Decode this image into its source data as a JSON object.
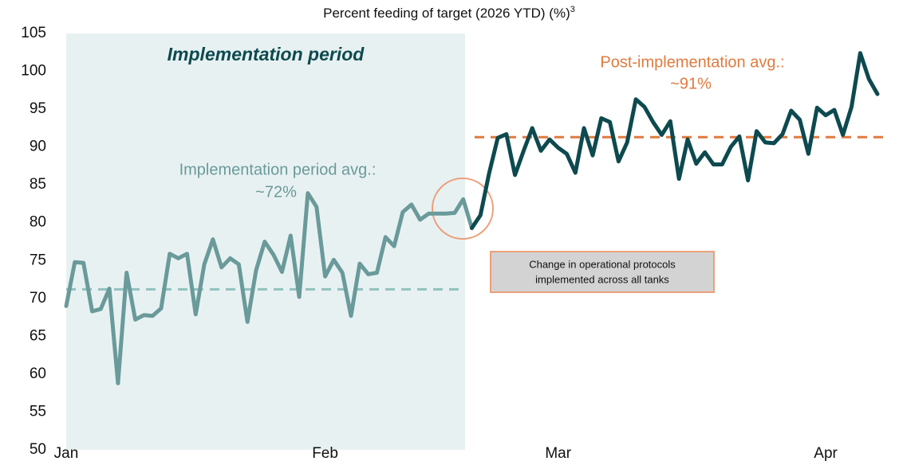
{
  "chart_data": {
    "type": "line",
    "title": "Percent feeding of target (2026 YTD) (%)",
    "title_footnote": "3",
    "ylim": [
      50,
      105
    ],
    "yticks": [
      50,
      55,
      60,
      65,
      70,
      75,
      80,
      85,
      90,
      95,
      100,
      105
    ],
    "xlim": [
      0,
      94
    ],
    "xticks": [
      {
        "value": 0,
        "label": "Jan"
      },
      {
        "value": 30,
        "label": "Feb"
      },
      {
        "value": 57,
        "label": "Mar"
      },
      {
        "value": 88,
        "label": "Apr"
      }
    ],
    "grid": false,
    "series": [
      {
        "name": "Implementation period",
        "color": "#6a9a9a",
        "values": [
          69,
          74.8,
          74.7,
          68.3,
          68.6,
          71.3,
          58.8,
          73.4,
          67.2,
          67.8,
          67.7,
          68.7,
          75.9,
          75.3,
          75.9,
          67.9,
          74.5,
          77.8,
          74.1,
          75.3,
          74.5,
          66.9,
          73.7,
          77.5,
          75.8,
          73.5,
          78.3,
          70.2,
          83.9,
          82.1,
          72.9,
          75.1,
          73.4,
          67.7,
          74.6,
          73.2,
          73.4,
          78.1,
          76.9,
          81.4,
          82.4,
          80.4,
          81.2,
          81.2,
          81.2,
          81.3,
          83.1,
          79.3
        ]
      },
      {
        "name": "Post-implementation",
        "color": "#0d4a4f",
        "values": [
          null,
          null,
          null,
          null,
          null,
          null,
          null,
          null,
          null,
          null,
          null,
          null,
          null,
          null,
          null,
          null,
          null,
          null,
          null,
          null,
          null,
          null,
          null,
          null,
          null,
          null,
          null,
          null,
          null,
          null,
          null,
          null,
          null,
          null,
          null,
          null,
          null,
          null,
          null,
          null,
          null,
          null,
          null,
          null,
          null,
          null,
          null,
          79.3,
          81,
          86.5,
          91.2,
          91.7,
          86.3,
          89.5,
          92.5,
          89.5,
          91,
          89.9,
          89.1,
          86.6,
          92.5,
          88.9,
          93.8,
          93.3,
          88.1,
          90.6,
          96.3,
          95.3,
          93.3,
          91.6,
          93.4,
          85.8,
          91,
          87.8,
          89.3,
          87.7,
          87.7,
          90,
          91.4,
          85.6,
          92.1,
          90.6,
          90.5,
          91.7,
          94.8,
          93.6,
          89.1,
          95.2,
          94.2,
          94.9,
          91.6,
          95.3,
          102.4,
          99,
          97
        ]
      }
    ],
    "reference_lines": [
      {
        "value": 71.2,
        "color": "#8fc1bf"
      },
      {
        "value": 91.3,
        "color": "#e07b3f"
      }
    ],
    "annotations": {
      "period": "Implementation period",
      "impl_avg_label": "Implementation period avg.:",
      "impl_avg_value": "~72%",
      "post_avg_label": "Post-implementation avg.:",
      "post_avg_value": "~91%",
      "box_line1": "Change in operational protocols",
      "box_line2": "implemented across all tanks"
    }
  }
}
